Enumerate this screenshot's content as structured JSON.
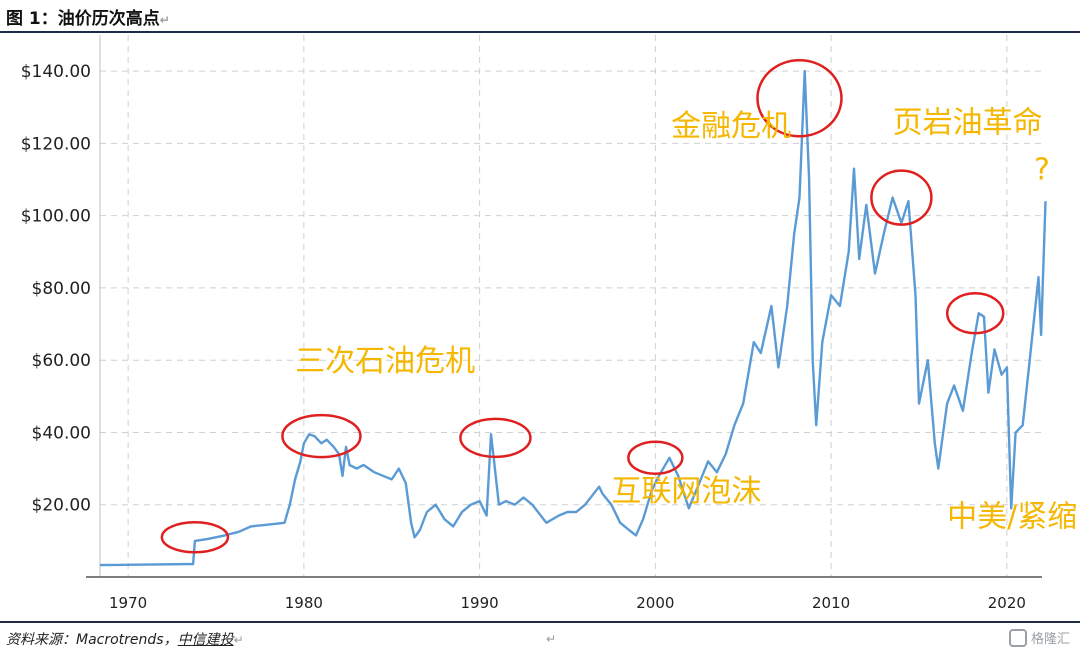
{
  "figure": {
    "title": "图 1：油价历次高点",
    "return_mark": "↵",
    "source_prefix": "资料来源：Macrotrends，",
    "source_org": "中信建投"
  },
  "watermark": {
    "text": "格隆汇"
  },
  "colors": {
    "line": "#5b9bd5",
    "annotation": "#f5b700",
    "circle": "#e02020",
    "grid": "#d0d0d0"
  },
  "chart_data": {
    "type": "line",
    "title": "",
    "xlabel": "",
    "ylabel": "",
    "xlim": [
      1968.4,
      2022.0
    ],
    "ylim": [
      0,
      150
    ],
    "y_ticks": [
      20,
      40,
      60,
      80,
      100,
      120,
      140
    ],
    "y_tick_labels": [
      "$20.00",
      "$40.00",
      "$60.00",
      "$80.00",
      "$100.00",
      "$120.00",
      "$140.00"
    ],
    "x_ticks": [
      1970,
      1980,
      1990,
      2000,
      2010,
      2020
    ],
    "x_tick_labels": [
      "1970",
      "1980",
      "1990",
      "2000",
      "2010",
      "2020"
    ],
    "grid": true,
    "series": [
      {
        "points": [
          [
            1968.4,
            3.3
          ],
          [
            1973.7,
            3.6
          ],
          [
            1973.8,
            10
          ],
          [
            1974.5,
            10.5
          ],
          [
            1975.5,
            11.5
          ],
          [
            1976.3,
            12.5
          ],
          [
            1977.0,
            14
          ],
          [
            1978.0,
            14.5
          ],
          [
            1978.9,
            15
          ],
          [
            1979.2,
            20
          ],
          [
            1979.5,
            27
          ],
          [
            1979.8,
            32
          ],
          [
            1980.0,
            37
          ],
          [
            1980.3,
            39.5
          ],
          [
            1980.6,
            39
          ],
          [
            1981.0,
            37
          ],
          [
            1981.3,
            38
          ],
          [
            1981.7,
            36
          ],
          [
            1982.0,
            34
          ],
          [
            1982.2,
            28
          ],
          [
            1982.4,
            36
          ],
          [
            1982.6,
            31
          ],
          [
            1983.0,
            30
          ],
          [
            1983.4,
            31
          ],
          [
            1984.0,
            29
          ],
          [
            1984.5,
            28
          ],
          [
            1985.0,
            27
          ],
          [
            1985.4,
            30
          ],
          [
            1985.8,
            26
          ],
          [
            1986.1,
            15
          ],
          [
            1986.3,
            11
          ],
          [
            1986.6,
            13
          ],
          [
            1987.0,
            18
          ],
          [
            1987.5,
            20
          ],
          [
            1988.0,
            16
          ],
          [
            1988.5,
            14
          ],
          [
            1989.0,
            18
          ],
          [
            1989.5,
            20
          ],
          [
            1990.0,
            21
          ],
          [
            1990.4,
            17
          ],
          [
            1990.65,
            39.5
          ],
          [
            1990.8,
            33
          ],
          [
            1991.1,
            20
          ],
          [
            1991.5,
            21
          ],
          [
            1992.0,
            20
          ],
          [
            1992.5,
            22
          ],
          [
            1993.0,
            20
          ],
          [
            1993.8,
            15
          ],
          [
            1994.5,
            17
          ],
          [
            1995.0,
            18
          ],
          [
            1995.5,
            18
          ],
          [
            1996.0,
            20
          ],
          [
            1996.8,
            25
          ],
          [
            1997.0,
            23
          ],
          [
            1997.5,
            20
          ],
          [
            1998.0,
            15
          ],
          [
            1998.5,
            13
          ],
          [
            1998.9,
            11.5
          ],
          [
            1999.3,
            16
          ],
          [
            1999.8,
            24
          ],
          [
            2000.2,
            28
          ],
          [
            2000.8,
            33
          ],
          [
            2001.3,
            28
          ],
          [
            2001.9,
            19
          ],
          [
            2002.5,
            26
          ],
          [
            2003.0,
            32
          ],
          [
            2003.5,
            29
          ],
          [
            2004.0,
            34
          ],
          [
            2004.5,
            42
          ],
          [
            2005.0,
            48
          ],
          [
            2005.6,
            65
          ],
          [
            2006.0,
            62
          ],
          [
            2006.6,
            75
          ],
          [
            2007.0,
            58
          ],
          [
            2007.5,
            75
          ],
          [
            2007.9,
            95
          ],
          [
            2008.2,
            105
          ],
          [
            2008.5,
            140
          ],
          [
            2008.75,
            110
          ],
          [
            2008.95,
            60
          ],
          [
            2009.15,
            42
          ],
          [
            2009.5,
            65
          ],
          [
            2010.0,
            78
          ],
          [
            2010.5,
            75
          ],
          [
            2011.0,
            90
          ],
          [
            2011.3,
            113
          ],
          [
            2011.6,
            88
          ],
          [
            2012.0,
            103
          ],
          [
            2012.5,
            84
          ],
          [
            2013.0,
            95
          ],
          [
            2013.5,
            105
          ],
          [
            2014.0,
            98
          ],
          [
            2014.4,
            104
          ],
          [
            2014.8,
            78
          ],
          [
            2015.0,
            48
          ],
          [
            2015.5,
            60
          ],
          [
            2015.9,
            37
          ],
          [
            2016.1,
            30
          ],
          [
            2016.6,
            48
          ],
          [
            2017.0,
            53
          ],
          [
            2017.5,
            46
          ],
          [
            2018.0,
            62
          ],
          [
            2018.4,
            73
          ],
          [
            2018.7,
            72
          ],
          [
            2018.95,
            51
          ],
          [
            2019.3,
            63
          ],
          [
            2019.7,
            56
          ],
          [
            2020.0,
            58
          ],
          [
            2020.25,
            19
          ],
          [
            2020.5,
            40
          ],
          [
            2020.9,
            42
          ],
          [
            2021.3,
            60
          ],
          [
            2021.8,
            83
          ],
          [
            2021.95,
            67
          ],
          [
            2022.2,
            104
          ]
        ]
      }
    ],
    "annotations": [
      {
        "text": "三次石油危机",
        "x": 1979.5,
        "y": 57,
        "size": 30
      },
      {
        "text": "互联网泡沫",
        "x": 1997.5,
        "y": 21,
        "size": 30
      },
      {
        "text": "金融危机",
        "x": 2000.9,
        "y": 122,
        "size": 30
      },
      {
        "text": "页岩油革命",
        "x": 2013.5,
        "y": 123,
        "size": 30
      },
      {
        "text": "?",
        "x": 2022.0,
        "y": 110,
        "size": 40
      },
      {
        "text": "中美/紧缩",
        "x": 2016.6,
        "y": 14,
        "size": 30
      }
    ],
    "highlights": [
      {
        "x": 1973.8,
        "y": 11
      },
      {
        "x": 1981.0,
        "y": 39
      },
      {
        "x": 1990.9,
        "y": 38.5
      },
      {
        "x": 2000.0,
        "y": 33
      },
      {
        "x": 2008.2,
        "y": 132.5
      },
      {
        "x": 2014.0,
        "y": 105
      },
      {
        "x": 2018.2,
        "y": 73
      }
    ]
  }
}
